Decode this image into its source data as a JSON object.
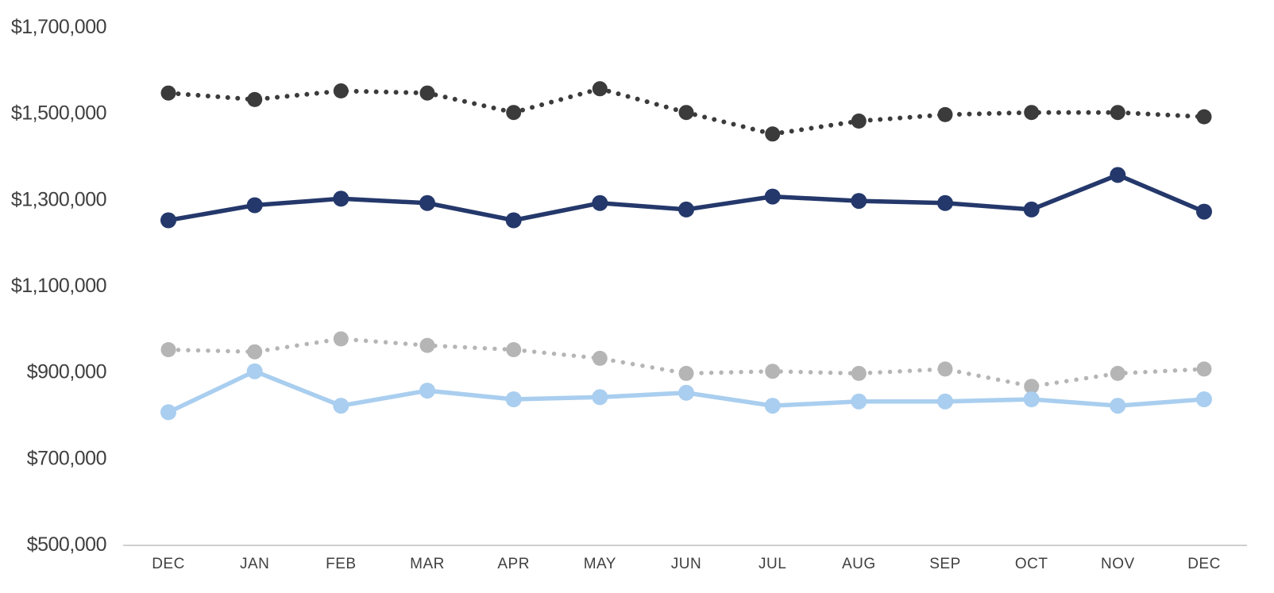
{
  "chart_data": {
    "type": "line",
    "title": "",
    "categories": [
      "DEC",
      "JAN",
      "FEB",
      "MAR",
      "APR",
      "MAY",
      "JUN",
      "JUL",
      "AUG",
      "SEP",
      "OCT",
      "NOV",
      "DEC"
    ],
    "series": [
      {
        "name": "dark-dotted",
        "color": "#3B3B3B",
        "line_style": "dotted",
        "marker": "circle",
        "values": [
          1545000,
          1530000,
          1550000,
          1545000,
          1500000,
          1555000,
          1500000,
          1450000,
          1480000,
          1495000,
          1500000,
          1500000,
          1490000
        ]
      },
      {
        "name": "navy-solid",
        "color": "#24386B",
        "line_style": "solid",
        "marker": "circle",
        "values": [
          1250000,
          1285000,
          1300000,
          1290000,
          1250000,
          1290000,
          1275000,
          1305000,
          1295000,
          1290000,
          1275000,
          1355000,
          1270000
        ]
      },
      {
        "name": "gray-dotted",
        "color": "#B5B5B5",
        "line_style": "dotted",
        "marker": "circle",
        "values": [
          950000,
          945000,
          975000,
          960000,
          950000,
          930000,
          895000,
          900000,
          895000,
          905000,
          865000,
          895000,
          905000
        ]
      },
      {
        "name": "light-blue-solid",
        "color": "#A9CEEF",
        "line_style": "solid",
        "marker": "circle",
        "values": [
          805000,
          900000,
          820000,
          855000,
          835000,
          840000,
          850000,
          820000,
          830000,
          830000,
          835000,
          820000,
          835000
        ]
      }
    ],
    "y_axis": {
      "tick_labels": [
        "$1,700,000",
        "$1,500,000",
        "$1,300,000",
        "$1,100,000",
        "$900,000",
        "$700,000",
        "$500,000"
      ],
      "tick_values": [
        1700000,
        1500000,
        1300000,
        1100000,
        900000,
        700000,
        500000
      ],
      "min": 500000,
      "max": 1700000
    },
    "x_axis": {
      "labels": [
        "DEC",
        "JAN",
        "FEB",
        "MAR",
        "APR",
        "MAY",
        "JUN",
        "JUL",
        "AUG",
        "SEP",
        "OCT",
        "NOV",
        "DEC"
      ]
    },
    "legend": "none",
    "grid": false,
    "axis_line_color": "#BFBFBF",
    "label_color": "#404040"
  }
}
